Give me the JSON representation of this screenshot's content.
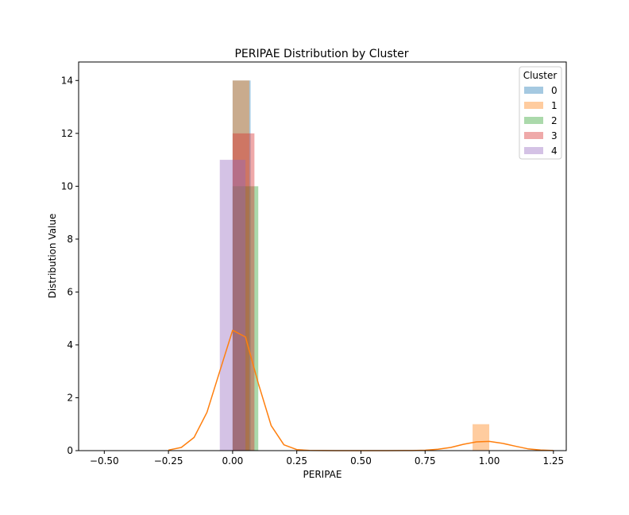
{
  "chart_data": {
    "type": "bar",
    "title": "PERIPAE Distribution by Cluster",
    "xlabel": "PERIPAE",
    "ylabel": "Distribution Value",
    "xlim": [
      -0.6,
      1.3
    ],
    "ylim": [
      0,
      14.7
    ],
    "xticks": [
      -0.5,
      -0.25,
      0.0,
      0.25,
      0.5,
      0.75,
      1.0,
      1.25
    ],
    "xtick_labels": [
      "−0.50",
      "−0.25",
      "0.00",
      "0.25",
      "0.50",
      "0.75",
      "1.00",
      "1.25"
    ],
    "yticks": [
      0,
      2,
      4,
      6,
      8,
      10,
      12,
      14
    ],
    "ytick_labels": [
      "0",
      "2",
      "4",
      "6",
      "8",
      "10",
      "12",
      "14"
    ],
    "grid": false,
    "legend": {
      "title": "Cluster",
      "placement": "top-right",
      "entries": [
        "0",
        "1",
        "2",
        "3",
        "4"
      ]
    },
    "series": [
      {
        "name": "0",
        "color": "#1f77b4",
        "opacity": 0.4,
        "bins": [
          {
            "x0": 0.0,
            "x1": 0.07,
            "value": 14
          }
        ]
      },
      {
        "name": "1",
        "color": "#ff7f0e",
        "opacity": 0.4,
        "bins": [
          {
            "x0": 0.0,
            "x1": 0.065,
            "value": 14
          },
          {
            "x0": 0.935,
            "x1": 1.0,
            "value": 1
          }
        ]
      },
      {
        "name": "2",
        "color": "#2ca02c",
        "opacity": 0.4,
        "bins": [
          {
            "x0": 0.0,
            "x1": 0.1,
            "value": 10
          }
        ]
      },
      {
        "name": "3",
        "color": "#d62728",
        "opacity": 0.4,
        "bins": [
          {
            "x0": 0.0,
            "x1": 0.085,
            "value": 12
          }
        ]
      },
      {
        "name": "4",
        "color": "#9467bd",
        "opacity": 0.4,
        "bins": [
          {
            "x0": -0.05,
            "x1": 0.05,
            "value": 11
          }
        ]
      }
    ],
    "kde": {
      "series": "1",
      "color": "#ff7f0e",
      "x": [
        -0.25,
        -0.2,
        -0.15,
        -0.1,
        -0.05,
        0.0,
        0.05,
        0.1,
        0.15,
        0.2,
        0.25,
        0.3,
        0.4,
        0.5,
        0.6,
        0.7,
        0.75,
        0.8,
        0.85,
        0.9,
        0.95,
        1.0,
        1.05,
        1.1,
        1.15,
        1.2,
        1.25
      ],
      "y": [
        0.02,
        0.12,
        0.5,
        1.45,
        3.0,
        4.55,
        4.3,
        2.55,
        0.95,
        0.22,
        0.04,
        0.005,
        0.0,
        0.0,
        0.0,
        0.003,
        0.015,
        0.05,
        0.12,
        0.24,
        0.33,
        0.35,
        0.28,
        0.17,
        0.07,
        0.02,
        0.003
      ]
    }
  }
}
